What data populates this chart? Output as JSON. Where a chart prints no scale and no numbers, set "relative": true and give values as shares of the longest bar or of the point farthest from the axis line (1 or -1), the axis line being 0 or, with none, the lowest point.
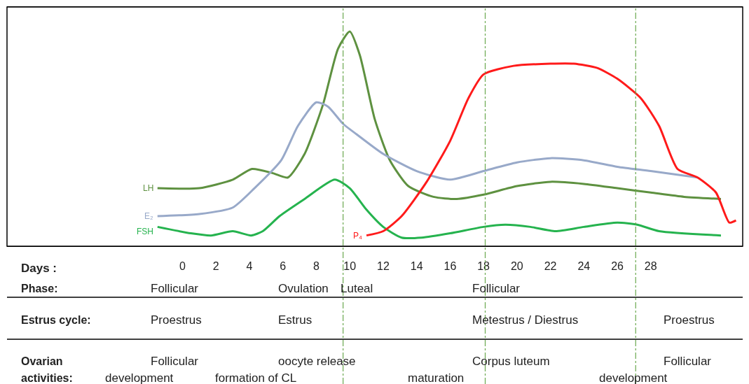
{
  "chart_data": {
    "type": "line",
    "relative": true,
    "xlabel": "Days :",
    "xlim": [
      -10.5,
      33.5
    ],
    "xticks": [
      0,
      2,
      4,
      6,
      8,
      10,
      12,
      14,
      16,
      18,
      20,
      22,
      24,
      26,
      28
    ],
    "legend": false,
    "marker": "none",
    "line_style": "solid",
    "series": [
      {
        "name": "LH",
        "color": "#5e9140",
        "x": [
          -1.5,
          1,
          3,
          4.15,
          5.4,
          6.3,
          7.3,
          8.4,
          9.3,
          10,
          10.6,
          11.5,
          12.4,
          13.5,
          15,
          16.4,
          18,
          20,
          22,
          24,
          26,
          28,
          30,
          32.2
        ],
        "values": [
          0.27,
          0.27,
          0.31,
          0.36,
          0.34,
          0.32,
          0.43,
          0.66,
          0.92,
          1,
          0.89,
          0.59,
          0.4,
          0.28,
          0.23,
          0.22,
          0.24,
          0.28,
          0.3,
          0.29,
          0.27,
          0.25,
          0.23,
          0.22
        ]
      },
      {
        "name": "E₂",
        "color": "#98a9c9",
        "x": [
          -1.5,
          1,
          3,
          4.3,
          5.9,
          6.9,
          8,
          8.7,
          9.6,
          10.6,
          12,
          14,
          16,
          18,
          20,
          22,
          24,
          26,
          28,
          30.8
        ],
        "values": [
          0.14,
          0.15,
          0.18,
          0.27,
          0.4,
          0.56,
          0.67,
          0.65,
          0.57,
          0.51,
          0.43,
          0.35,
          0.31,
          0.35,
          0.39,
          0.41,
          0.4,
          0.37,
          0.35,
          0.32
        ]
      },
      {
        "name": "FSH",
        "color": "#25b34e",
        "x": [
          -1.5,
          0.5,
          1.7,
          3,
          4.1,
          4.8,
          5.8,
          7.3,
          9.1,
          10,
          11,
          12,
          13.1,
          14.3,
          16,
          18,
          19.3,
          20.8,
          22.3,
          24,
          26,
          27.2,
          28.5,
          32.2
        ],
        "values": [
          0.09,
          0.06,
          0.05,
          0.07,
          0.05,
          0.07,
          0.14,
          0.22,
          0.31,
          0.27,
          0.17,
          0.09,
          0.04,
          0.04,
          0.06,
          0.09,
          0.1,
          0.09,
          0.07,
          0.09,
          0.11,
          0.1,
          0.07,
          0.05
        ]
      },
      {
        "name": "P₄",
        "color": "#ff1a1a",
        "x": [
          11,
          12,
          13.1,
          14.6,
          16,
          17.1,
          18,
          19.8,
          22,
          23.4,
          24.8,
          26,
          27.4,
          28.5,
          29.6,
          30.8,
          31.9,
          32.7,
          33.1
        ],
        "values": [
          0.05,
          0.07,
          0.14,
          0.3,
          0.49,
          0.69,
          0.8,
          0.84,
          0.85,
          0.85,
          0.83,
          0.78,
          0.69,
          0.56,
          0.36,
          0.32,
          0.25,
          0.11,
          0.12
        ]
      }
    ],
    "ref_lines": [
      {
        "axis": "x",
        "value": 9.6,
        "color": "#6aa84f",
        "line_style": "dashdot"
      },
      {
        "axis": "x",
        "value": 18.1,
        "color": "#6aa84f",
        "line_style": "dashdot"
      },
      {
        "axis": "x",
        "value": 27.1,
        "color": "#6aa84f",
        "line_style": "dashdot"
      }
    ],
    "annotations": [
      "Phase:",
      "Follicular",
      "Ovulation",
      "Luteal",
      "Follicular",
      "Estrus cycle:",
      "Proestrus",
      "Estrus",
      "Metestrus / Diestrus",
      "Proestrus",
      "Ovarian",
      "activities:",
      "Follicular",
      "oocyte release",
      "Corpus luteum",
      "Follicular",
      "development",
      "formation of CL",
      "maturation",
      "development"
    ]
  }
}
